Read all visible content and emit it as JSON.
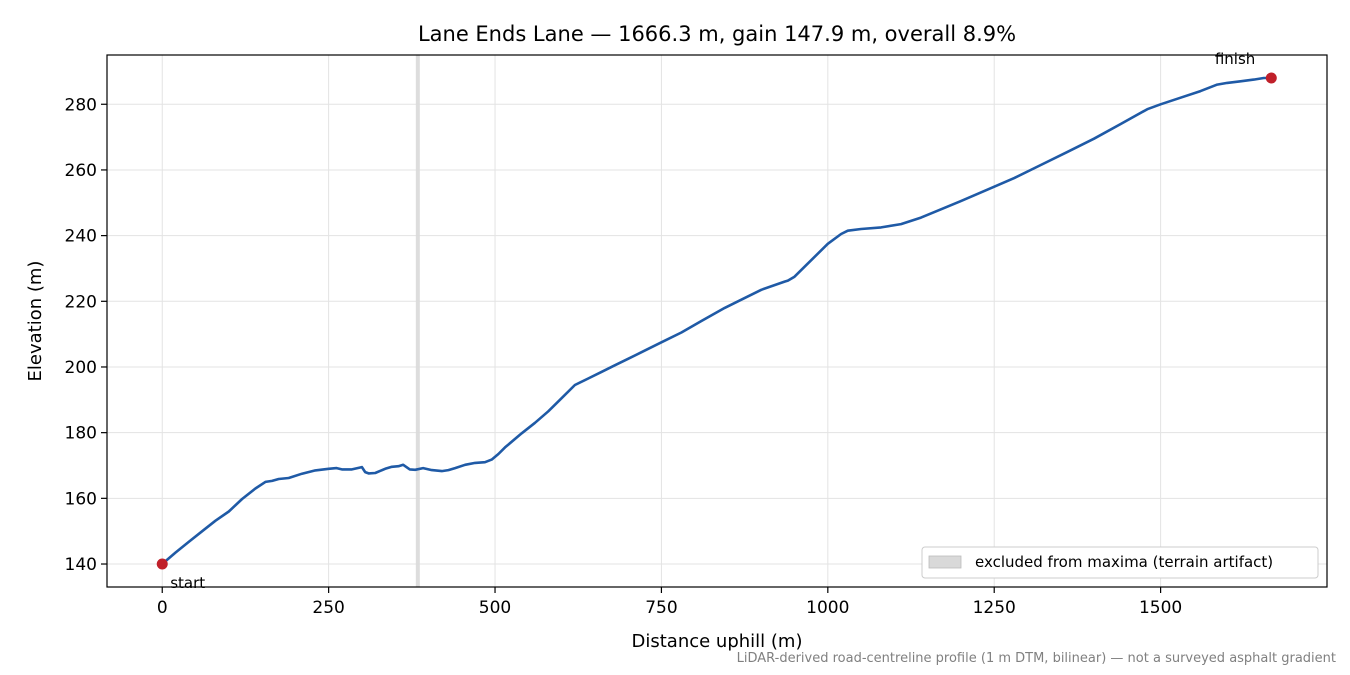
{
  "chart_data": {
    "type": "line",
    "title": "Lane Ends Lane — 1666.3 m, gain 147.9 m, overall 8.9%",
    "xlabel": "Distance uphill (m)",
    "ylabel": "Elevation (m)",
    "xlim": [
      -83,
      1750
    ],
    "ylim": [
      133,
      295
    ],
    "xticks": [
      0,
      250,
      500,
      750,
      1000,
      1250,
      1500
    ],
    "yticks": [
      140,
      160,
      180,
      200,
      220,
      240,
      260,
      280
    ],
    "grid": true,
    "legend_position": "lower-right",
    "colors": {
      "line": "#1f5aa6",
      "endpoints": "#c0202a",
      "excluded": "#d9d9d9"
    },
    "excluded_region": {
      "x_start": 381,
      "x_end": 387,
      "label": "excluded from maxima (terrain artifact)"
    },
    "series": [
      {
        "x": [
          0,
          20,
          40,
          60,
          80,
          100,
          120,
          140,
          155,
          165,
          175,
          190,
          210,
          230,
          250,
          262,
          270,
          285,
          300,
          305,
          310,
          320,
          335,
          345,
          355,
          362,
          372,
          380,
          392,
          405,
          420,
          430,
          440,
          455,
          470,
          485,
          495,
          505,
          515,
          540,
          560,
          580,
          600,
          620,
          640,
          660,
          680,
          700,
          720,
          750,
          780,
          810,
          845,
          870,
          900,
          935,
          940,
          950,
          975,
          1000,
          1020,
          1030,
          1050,
          1080,
          1110,
          1140,
          1170,
          1200,
          1240,
          1280,
          1320,
          1360,
          1400,
          1440,
          1480,
          1500,
          1530,
          1560,
          1585,
          1600,
          1620,
          1640,
          1655,
          1666.3
        ],
        "y": [
          140.0,
          143.5,
          146.8,
          150.0,
          153.2,
          156.0,
          159.8,
          163.0,
          165.0,
          165.3,
          165.9,
          166.2,
          167.5,
          168.5,
          169.0,
          169.2,
          168.8,
          168.8,
          169.5,
          168.0,
          167.6,
          167.7,
          169.0,
          169.6,
          169.8,
          170.2,
          168.8,
          168.7,
          169.2,
          168.6,
          168.3,
          168.6,
          169.2,
          170.2,
          170.8,
          171.0,
          171.8,
          173.5,
          175.5,
          179.8,
          183.0,
          186.5,
          190.5,
          194.5,
          196.5,
          198.5,
          200.5,
          202.5,
          204.5,
          207.5,
          210.5,
          214.0,
          218.0,
          220.5,
          223.5,
          226.0,
          226.3,
          227.5,
          232.5,
          237.5,
          240.5,
          241.5,
          242.0,
          242.5,
          243.5,
          245.5,
          248.0,
          250.5,
          254.0,
          257.5,
          261.5,
          265.5,
          269.5,
          274.0,
          278.5,
          280.0,
          282.0,
          284.0,
          286.0,
          286.5,
          287.0,
          287.5,
          288.0,
          288.0
        ]
      }
    ],
    "annotations": [
      {
        "text": "start",
        "x": 0,
        "y": 140.0
      },
      {
        "text": "finish",
        "x": 1666.3,
        "y": 288.0
      }
    ],
    "footnote": "LiDAR-derived road-centreline profile (1 m DTM, bilinear) — not a surveyed asphalt gradient"
  }
}
